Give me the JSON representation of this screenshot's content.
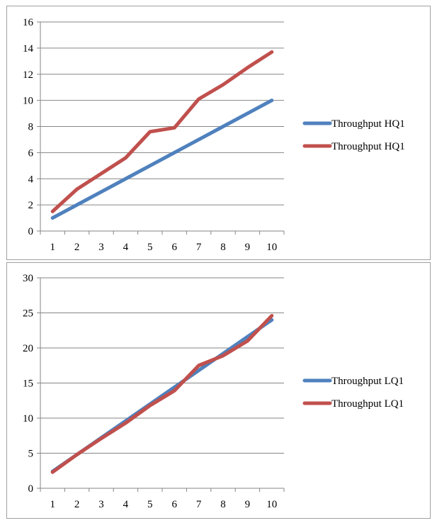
{
  "colors": {
    "blue": "#4f81bd",
    "red": "#c0504d",
    "grid": "#868686",
    "frame": "#a0a0a0"
  },
  "chart_data": [
    {
      "type": "line",
      "categories": [
        "1",
        "2",
        "3",
        "4",
        "5",
        "6",
        "7",
        "8",
        "9",
        "10"
      ],
      "ylim": [
        0,
        16
      ],
      "yticks": [
        0,
        2,
        4,
        6,
        8,
        10,
        12,
        14,
        16
      ],
      "grid": true,
      "legend_position": "right",
      "title": "",
      "xlabel": "",
      "ylabel": "",
      "series": [
        {
          "name": "Throughput HQ1",
          "color": "#4f81bd",
          "values": [
            1.0,
            2.0,
            3.0,
            4.0,
            5.0,
            6.0,
            7.0,
            8.0,
            9.0,
            10.0
          ]
        },
        {
          "name": "Throughput HQ1",
          "color": "#c0504d",
          "values": [
            1.5,
            3.2,
            4.4,
            5.6,
            7.6,
            7.9,
            10.1,
            11.2,
            12.5,
            13.7
          ]
        }
      ]
    },
    {
      "type": "line",
      "categories": [
        "1",
        "2",
        "3",
        "4",
        "5",
        "6",
        "7",
        "8",
        "9",
        "10"
      ],
      "ylim": [
        0,
        30
      ],
      "yticks": [
        0,
        5,
        10,
        15,
        20,
        25,
        30
      ],
      "grid": true,
      "legend_position": "right",
      "title": "",
      "xlabel": "",
      "ylabel": "",
      "series": [
        {
          "name": "Throughput LQ1",
          "color": "#4f81bd",
          "values": [
            2.4,
            4.8,
            7.2,
            9.6,
            12.0,
            14.4,
            16.8,
            19.2,
            21.6,
            24.0
          ]
        },
        {
          "name": "Throughput LQ1",
          "color": "#c0504d",
          "values": [
            2.3,
            4.8,
            7.1,
            9.3,
            11.8,
            13.9,
            17.5,
            18.9,
            21.0,
            24.6
          ]
        }
      ]
    }
  ]
}
